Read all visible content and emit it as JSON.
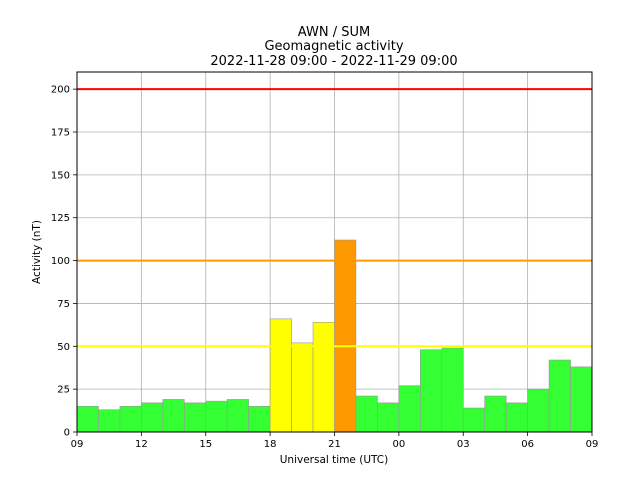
{
  "chart_data": {
    "type": "bar",
    "title": [
      "AWN / SUM",
      "Geomagnetic activity",
      "2022-11-28 09:00 - 2022-11-29 09:00"
    ],
    "xlabel": "Universal time (UTC)",
    "ylabel": "Activity (nT)",
    "ylim": [
      0,
      210
    ],
    "yticks": [
      0,
      25,
      50,
      75,
      100,
      125,
      150,
      175,
      200
    ],
    "xticks": [
      "09",
      "12",
      "15",
      "18",
      "21",
      "00",
      "03",
      "06",
      "09"
    ],
    "grid": true,
    "legend": "none",
    "hours": [
      "09",
      "10",
      "11",
      "12",
      "13",
      "14",
      "15",
      "16",
      "17",
      "18",
      "19",
      "20",
      "21",
      "22",
      "23",
      "00",
      "01",
      "02",
      "03",
      "04",
      "05",
      "06",
      "07",
      "08"
    ],
    "values": [
      15,
      13,
      15,
      17,
      19,
      17,
      18,
      19,
      15,
      66,
      52,
      64,
      112,
      21,
      17,
      27,
      48,
      49,
      14,
      21,
      17,
      25,
      42,
      38
    ],
    "thresholds": [
      {
        "value": 50,
        "color": "#ffff00"
      },
      {
        "value": 100,
        "color": "#ff9900"
      },
      {
        "value": 200,
        "color": "#ff0000"
      }
    ],
    "bar_colors": {
      "low": "#33ff33",
      "moderate": "#ffff00",
      "high": "#ff9900",
      "extreme": "#ff0000",
      "edge": "#999999"
    }
  }
}
